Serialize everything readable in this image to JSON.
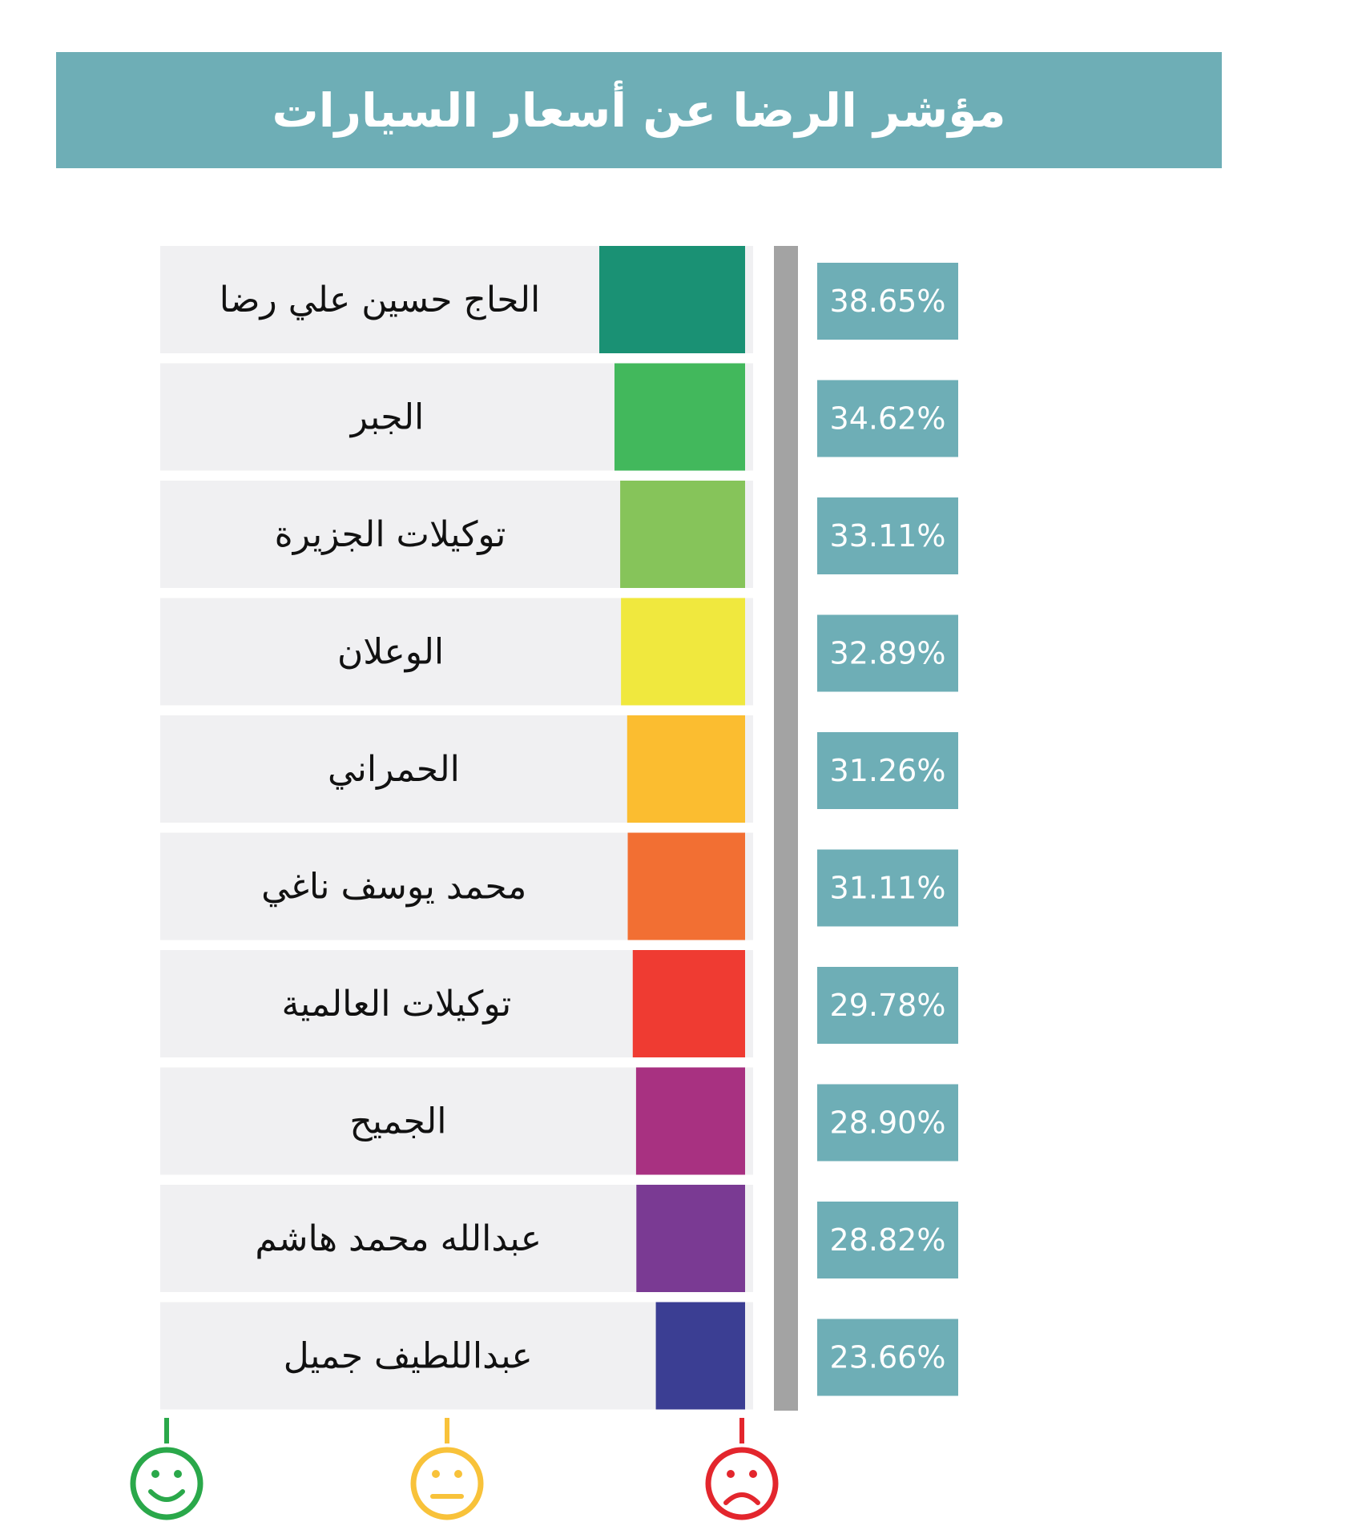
{
  "chart_data": {
    "type": "bar",
    "title": "مؤشر الرضا عن أسعار السيارات",
    "categories": [
      "الحاج حسين علي رضا",
      "الجبر",
      "توكيلات الجزيرة",
      "الوعلان",
      "الحمراني",
      "محمد يوسف ناغي",
      "توكيلات العالمية",
      "الجميح",
      "عبدالله محمد هاشم",
      "عبداللطيف جميل"
    ],
    "values": [
      38.65,
      34.62,
      33.11,
      32.89,
      31.26,
      31.11,
      29.78,
      28.9,
      28.82,
      23.66
    ],
    "value_labels": [
      "38.65%",
      "34.62%",
      "33.11%",
      "32.89%",
      "31.26%",
      "31.11%",
      "29.78%",
      "28.90%",
      "28.82%",
      "23.66%"
    ],
    "bar_colors": [
      "#1a9174",
      "#42b85c",
      "#86c45a",
      "#f0e83e",
      "#fbbd30",
      "#f26f33",
      "#ef3b32",
      "#a83181",
      "#7a3a93",
      "#3b3e93"
    ],
    "legend_scale": [
      {
        "icon": "happy-face-icon",
        "color": "#2aa84a"
      },
      {
        "icon": "neutral-face-icon",
        "color": "#f8c23a"
      },
      {
        "icon": "sad-face-icon",
        "color": "#e3262d"
      }
    ],
    "colors": {
      "banner": "#6eaeb6",
      "row_background": "#f0f0f2",
      "value_box": "#6eaeb6",
      "separator": "#a3a3a3"
    }
  }
}
